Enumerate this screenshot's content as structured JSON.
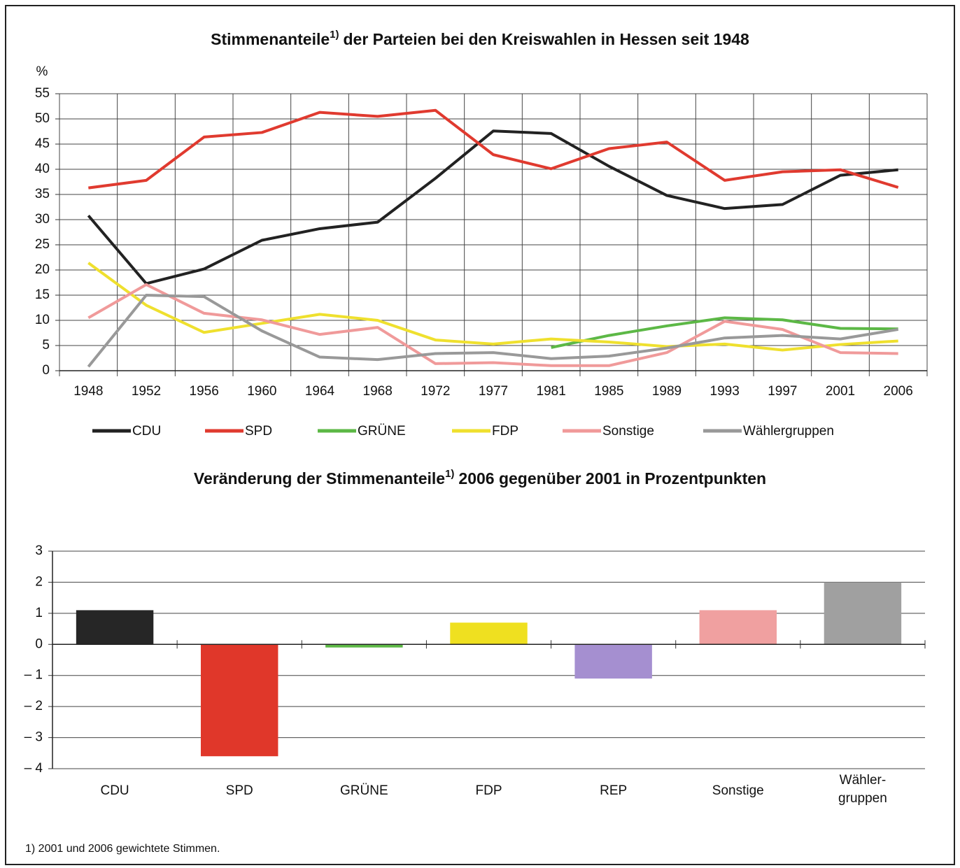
{
  "chart_data": [
    {
      "type": "line",
      "title": [
        "Stimmenanteile",
        "1)",
        "der Parteien bei den Kreiswahlen in Hessen seit 1948"
      ],
      "ylabel": "%",
      "categories": [
        "1948",
        "1952",
        "1956",
        "1960",
        "1964",
        "1968",
        "1972",
        "1977",
        "1981",
        "1985",
        "1989",
        "1993",
        "1997",
        "2001",
        "2006"
      ],
      "series": [
        {
          "name": "CDU",
          "color": "#222222",
          "values": [
            30.8,
            17.3,
            20.2,
            25.9,
            28.2,
            29.5,
            38.2,
            47.6,
            47.1,
            40.6,
            34.8,
            32.2,
            33.0,
            38.8,
            39.9
          ]
        },
        {
          "name": "SPD",
          "color": "#e03a2f",
          "values": [
            36.3,
            37.8,
            46.4,
            47.3,
            51.3,
            50.5,
            51.7,
            42.9,
            40.1,
            44.1,
            45.4,
            37.8,
            39.5,
            39.9,
            36.4
          ]
        },
        {
          "name": "GRÜNE",
          "color": "#5cb846",
          "values": [
            null,
            null,
            null,
            null,
            null,
            null,
            null,
            null,
            4.6,
            7.0,
            8.9,
            10.5,
            10.1,
            8.4,
            8.3
          ]
        },
        {
          "name": "FDP",
          "color": "#efe02e",
          "values": [
            21.4,
            13.0,
            7.6,
            9.4,
            11.2,
            10.0,
            6.1,
            5.3,
            6.3,
            5.7,
            4.8,
            5.3,
            4.1,
            5.2,
            5.9
          ]
        },
        {
          "name": "Sonstige",
          "color": "#f09a9a",
          "values": [
            10.5,
            17.1,
            11.4,
            10.1,
            7.2,
            8.6,
            1.4,
            1.6,
            1.0,
            1.0,
            3.6,
            9.8,
            8.2,
            3.6,
            3.4
          ]
        },
        {
          "name": "Wählergruppen",
          "color": "#999999",
          "values": [
            0.8,
            15.0,
            14.7,
            7.9,
            2.7,
            2.2,
            3.4,
            3.6,
            2.4,
            2.9,
            4.5,
            6.5,
            7.0,
            6.3,
            8.2
          ]
        }
      ],
      "ylim": [
        0,
        55
      ],
      "yticks": [
        0,
        5,
        10,
        15,
        20,
        25,
        30,
        35,
        40,
        45,
        50,
        55
      ],
      "grid": true
    },
    {
      "type": "bar",
      "title": [
        "Veränderung der Stimmenanteile",
        "1)",
        "2006 gegenüber 2001 in Prozentpunkten"
      ],
      "categories": [
        "CDU",
        "SPD",
        "GRÜNE",
        "FDP",
        "REP",
        "Sonstige",
        "Wähler-\ngruppen"
      ],
      "values": [
        1.1,
        -3.6,
        -0.1,
        0.7,
        -1.1,
        1.1,
        2.0
      ],
      "colors": [
        "#262626",
        "#e0372a",
        "#5cb846",
        "#efe020",
        "#a58fd0",
        "#f0a0a0",
        "#a0a0a0"
      ],
      "ylim": [
        -4,
        3
      ],
      "yticks": [
        {
          "value": -4,
          "label": "– 4"
        },
        {
          "value": -3,
          "label": "– 3"
        },
        {
          "value": -2,
          "label": "– 2"
        },
        {
          "value": -1,
          "label": "– 1"
        },
        0,
        1,
        2,
        3
      ],
      "grid": true
    }
  ],
  "footnote": "1) 2001 und 2006 gewichtete Stimmen."
}
